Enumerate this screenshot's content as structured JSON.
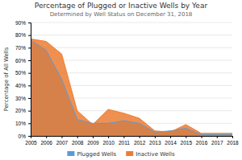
{
  "chart_data": {
    "type": "area",
    "title": "Percentage of Plugged or Inactive Wells by Year",
    "subtitle": "Determined by Well Status on December 31, 2018",
    "ylabel": "Percentage of All Wells",
    "x": [
      2005,
      2006,
      2007,
      2008,
      2009,
      2010,
      2011,
      2012,
      2013,
      2014,
      2015,
      2016,
      2017,
      2018
    ],
    "series": [
      {
        "name": "Plugged Wells",
        "color": "#5b9bd5",
        "values": [
          76,
          68,
          45,
          13,
          10,
          10,
          12,
          10,
          3,
          4,
          6,
          1,
          1,
          1
        ]
      },
      {
        "name": "Inactive Wells",
        "color": "#ed7d31",
        "values": [
          77,
          75,
          65,
          20,
          9,
          21,
          18,
          14,
          4,
          3,
          9,
          2,
          2,
          2
        ]
      }
    ],
    "xlim": [
      2005,
      2018
    ],
    "xticks": [
      2005,
      2006,
      2007,
      2008,
      2009,
      2010,
      2011,
      2012,
      2013,
      2014,
      2015,
      2016,
      2017,
      2018
    ],
    "ylim": [
      0,
      90
    ],
    "yticks": [
      {
        "value": 0,
        "label": "0%"
      },
      {
        "value": 10,
        "label": "10%"
      },
      {
        "value": 20,
        "label": "20%"
      },
      {
        "value": 30,
        "label": "30%"
      },
      {
        "value": 40,
        "label": "40%"
      },
      {
        "value": 50,
        "label": "50%"
      },
      {
        "value": 60,
        "label": "60%"
      },
      {
        "value": 70,
        "label": "70%"
      },
      {
        "value": 80,
        "label": "80%"
      },
      {
        "value": 90,
        "label": "90%"
      }
    ],
    "grid": true,
    "legend": "bottom"
  }
}
